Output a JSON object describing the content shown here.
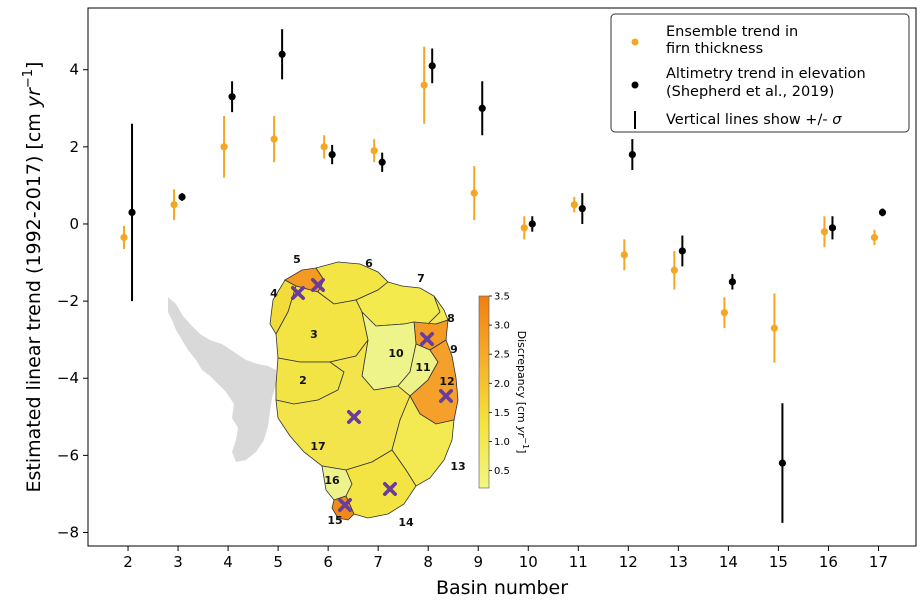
{
  "chart_data": {
    "type": "scatter",
    "xlabel": "Basin number",
    "ylabel_prefix": "Estimated linear trend (1992-2017) [cm ",
    "ylabel_unit_italic": "yr",
    "ylabel_exp": "−1",
    "ylabel_suffix": "]",
    "xlim": [
      1.2,
      17.75
    ],
    "ylim": [
      -8.35,
      5.6
    ],
    "xticks": [
      "2",
      "3",
      "4",
      "5",
      "6",
      "7",
      "8",
      "9",
      "10",
      "11",
      "12",
      "13",
      "14",
      "15",
      "16",
      "17"
    ],
    "yticks": [
      -8,
      -6,
      -4,
      -2,
      0,
      2,
      4
    ],
    "colors": {
      "ensemble": "#f5a623",
      "altimetry": "#000000"
    },
    "series": [
      {
        "name_line1": "Ensemble trend in",
        "name_line2": "firn thickness",
        "x": [
          2,
          3,
          4,
          5,
          6,
          7,
          8,
          9,
          10,
          11,
          12,
          13,
          14,
          15,
          16,
          17
        ],
        "y": [
          -0.35,
          0.5,
          2.0,
          2.2,
          2.0,
          1.9,
          3.6,
          0.8,
          -0.1,
          0.5,
          -0.8,
          -1.2,
          -2.3,
          -2.7,
          -0.2,
          -0.35
        ],
        "err": [
          0.3,
          0.4,
          0.8,
          0.6,
          0.3,
          0.3,
          1.0,
          0.7,
          0.3,
          0.2,
          0.4,
          0.5,
          0.4,
          0.9,
          0.4,
          0.2
        ]
      },
      {
        "name_line1": "Altimetry trend in elevation",
        "name_line2": "(Shepherd et al., 2019)",
        "x": [
          2,
          3,
          4,
          5,
          6,
          7,
          8,
          9,
          10,
          11,
          12,
          13,
          14,
          15,
          16,
          17
        ],
        "y": [
          0.3,
          0.7,
          3.3,
          4.4,
          1.8,
          1.6,
          4.1,
          3.0,
          0.0,
          0.4,
          1.8,
          -0.7,
          -1.5,
          -6.2,
          -0.1,
          0.3
        ],
        "err": [
          2.3,
          0.1,
          0.4,
          0.65,
          0.25,
          0.25,
          0.45,
          0.7,
          0.2,
          0.4,
          0.4,
          0.4,
          0.2,
          1.55,
          0.3,
          0.1
        ]
      }
    ],
    "legend_note": "Vertical lines show +/- ",
    "legend_note_symbol": "σ",
    "legend_placement": "top-right",
    "inset": {
      "basin_labels": [
        "2",
        "3",
        "4",
        "5",
        "6",
        "7",
        "8",
        "9",
        "10",
        "11",
        "12",
        "13",
        "14",
        "15",
        "16",
        "17"
      ],
      "colorbar_label_prefix": "Discrepancy [cm ",
      "colorbar_label_unit": "yr",
      "colorbar_label_exp": "−1",
      "colorbar_label_suffix": "]",
      "colorbar_ticks": [
        "0.5",
        "1.0",
        "1.5",
        "2.0",
        "2.5",
        "3.0",
        "3.5"
      ],
      "colorbar_min": 0.2,
      "colorbar_max": 3.5,
      "marker_color": "#6a3d9a",
      "peninsula_color": "#d9d9d9"
    }
  }
}
